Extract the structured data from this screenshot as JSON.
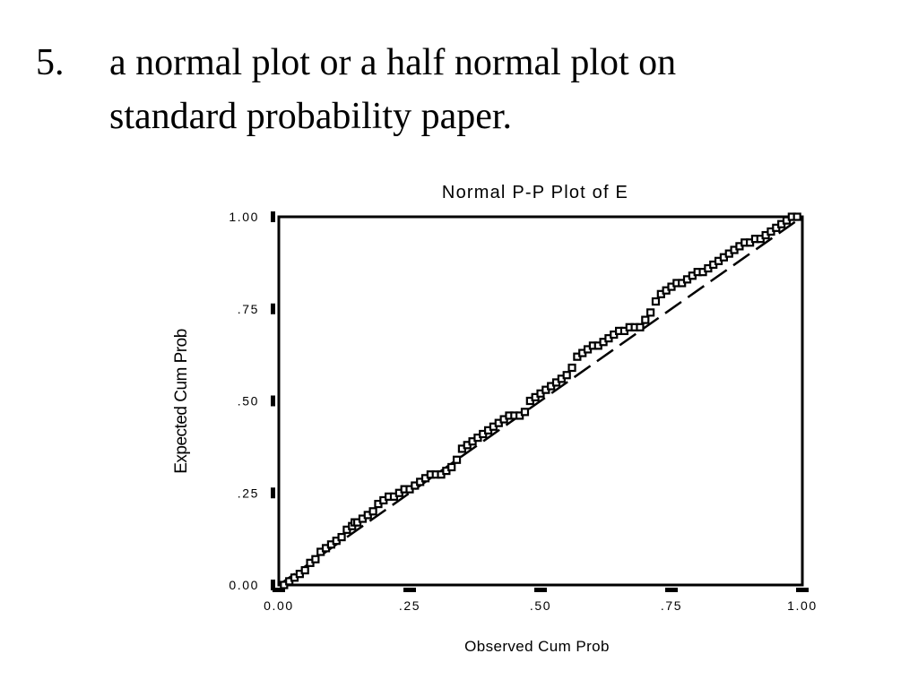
{
  "slide": {
    "bullet_number": "5.",
    "bullet_lines": [
      "a normal plot or a half normal plot on",
      "standard probability paper."
    ]
  },
  "chart_data": {
    "type": "scatter",
    "title": "Normal P-P Plot of  E",
    "xlabel": "Observed Cum Prob",
    "ylabel": "Expected Cum Prob",
    "xlim": [
      0,
      1
    ],
    "ylim": [
      0,
      1
    ],
    "x_ticks": [
      "0.00",
      ".25",
      ".50",
      ".75",
      "1.00"
    ],
    "y_ticks": [
      "0.00",
      ".25",
      ".50",
      ".75",
      "1.00"
    ],
    "reference_line": {
      "style": "dashed",
      "from": [
        0,
        0
      ],
      "to": [
        1,
        1
      ]
    },
    "grid": false,
    "marker": "hollow-square",
    "points": {
      "x": [
        0.01,
        0.02,
        0.03,
        0.04,
        0.05,
        0.06,
        0.07,
        0.08,
        0.09,
        0.1,
        0.11,
        0.12,
        0.13,
        0.14,
        0.145,
        0.15,
        0.16,
        0.17,
        0.18,
        0.19,
        0.2,
        0.21,
        0.22,
        0.23,
        0.24,
        0.25,
        0.26,
        0.27,
        0.28,
        0.29,
        0.3,
        0.31,
        0.32,
        0.33,
        0.34,
        0.35,
        0.36,
        0.37,
        0.38,
        0.39,
        0.4,
        0.41,
        0.42,
        0.43,
        0.44,
        0.45,
        0.46,
        0.47,
        0.48,
        0.49,
        0.5,
        0.51,
        0.52,
        0.53,
        0.54,
        0.55,
        0.56,
        0.57,
        0.58,
        0.59,
        0.6,
        0.61,
        0.62,
        0.63,
        0.64,
        0.65,
        0.66,
        0.67,
        0.68,
        0.69,
        0.7,
        0.71,
        0.72,
        0.73,
        0.74,
        0.75,
        0.76,
        0.77,
        0.78,
        0.79,
        0.8,
        0.81,
        0.82,
        0.83,
        0.84,
        0.85,
        0.86,
        0.87,
        0.88,
        0.89,
        0.9,
        0.91,
        0.92,
        0.93,
        0.94,
        0.95,
        0.96,
        0.97,
        0.98,
        0.99
      ],
      "y": [
        0.0,
        0.01,
        0.02,
        0.03,
        0.04,
        0.06,
        0.07,
        0.09,
        0.1,
        0.11,
        0.12,
        0.13,
        0.15,
        0.16,
        0.17,
        0.17,
        0.18,
        0.19,
        0.2,
        0.22,
        0.23,
        0.24,
        0.24,
        0.25,
        0.26,
        0.26,
        0.27,
        0.28,
        0.29,
        0.3,
        0.3,
        0.3,
        0.31,
        0.32,
        0.34,
        0.37,
        0.38,
        0.39,
        0.4,
        0.41,
        0.42,
        0.43,
        0.44,
        0.45,
        0.46,
        0.46,
        0.46,
        0.47,
        0.5,
        0.51,
        0.52,
        0.53,
        0.54,
        0.55,
        0.56,
        0.57,
        0.59,
        0.62,
        0.63,
        0.64,
        0.65,
        0.65,
        0.66,
        0.67,
        0.68,
        0.69,
        0.69,
        0.7,
        0.7,
        0.7,
        0.72,
        0.74,
        0.77,
        0.79,
        0.8,
        0.81,
        0.82,
        0.82,
        0.83,
        0.84,
        0.85,
        0.85,
        0.86,
        0.87,
        0.88,
        0.89,
        0.9,
        0.91,
        0.92,
        0.93,
        0.93,
        0.94,
        0.94,
        0.95,
        0.96,
        0.97,
        0.98,
        0.99,
        1.0,
        1.0
      ]
    }
  }
}
